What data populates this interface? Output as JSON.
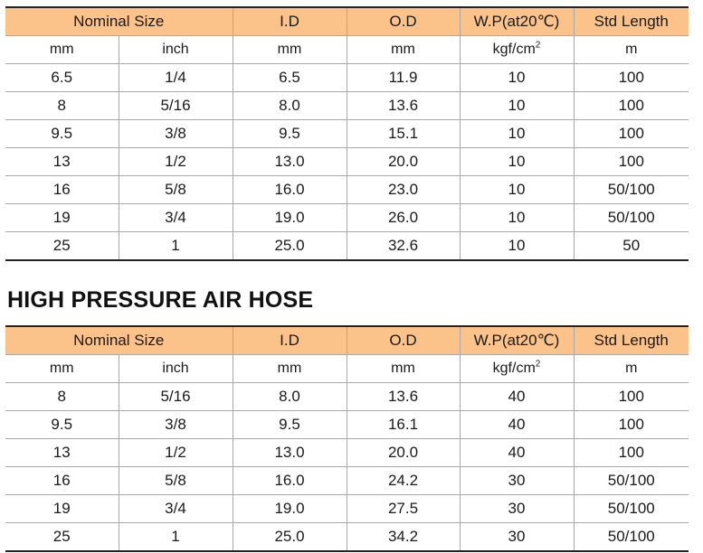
{
  "table1": {
    "headers": {
      "nominal_size": "Nominal Size",
      "id": "I.D",
      "od": "O.D",
      "wp": "W.P(at20℃)",
      "std_length": "Std Length"
    },
    "units": {
      "mm": "mm",
      "inch": "inch",
      "id": "mm",
      "od": "mm",
      "wp": "kgf/cm",
      "wp_sup": "2",
      "std_length": "m"
    },
    "rows": [
      [
        "6.5",
        "1/4",
        "6.5",
        "11.9",
        "10",
        "100"
      ],
      [
        "8",
        "5/16",
        "8.0",
        "13.6",
        "10",
        "100"
      ],
      [
        "9.5",
        "3/8",
        "9.5",
        "15.1",
        "10",
        "100"
      ],
      [
        "13",
        "1/2",
        "13.0",
        "20.0",
        "10",
        "100"
      ],
      [
        "16",
        "5/8",
        "16.0",
        "23.0",
        "10",
        "50/100"
      ],
      [
        "19",
        "3/4",
        "19.0",
        "26.0",
        "10",
        "50/100"
      ],
      [
        "25",
        "1",
        "25.0",
        "32.6",
        "10",
        "50"
      ]
    ]
  },
  "section_title": "HIGH PRESSURE AIR HOSE",
  "table2": {
    "headers": {
      "nominal_size": "Nominal Size",
      "id": "I.D",
      "od": "O.D",
      "wp": "W.P(at20℃)",
      "std_length": "Std Length"
    },
    "units": {
      "mm": "mm",
      "inch": "inch",
      "id": "mm",
      "od": "mm",
      "wp": "kgf/cm",
      "wp_sup": "2",
      "std_length": "m"
    },
    "rows": [
      [
        "8",
        "5/16",
        "8.0",
        "13.6",
        "40",
        "100"
      ],
      [
        "9.5",
        "3/8",
        "9.5",
        "16.1",
        "40",
        "100"
      ],
      [
        "13",
        "1/2",
        "13.0",
        "20.0",
        "40",
        "100"
      ],
      [
        "16",
        "5/8",
        "16.0",
        "24.2",
        "30",
        "50/100"
      ],
      [
        "19",
        "3/4",
        "19.0",
        "27.5",
        "30",
        "50/100"
      ],
      [
        "25",
        "1",
        "25.0",
        "34.2",
        "30",
        "50/100"
      ]
    ]
  },
  "colors": {
    "header_bg": "#fbc28a",
    "rule": "#222222",
    "grid": "#a8a8a8"
  }
}
